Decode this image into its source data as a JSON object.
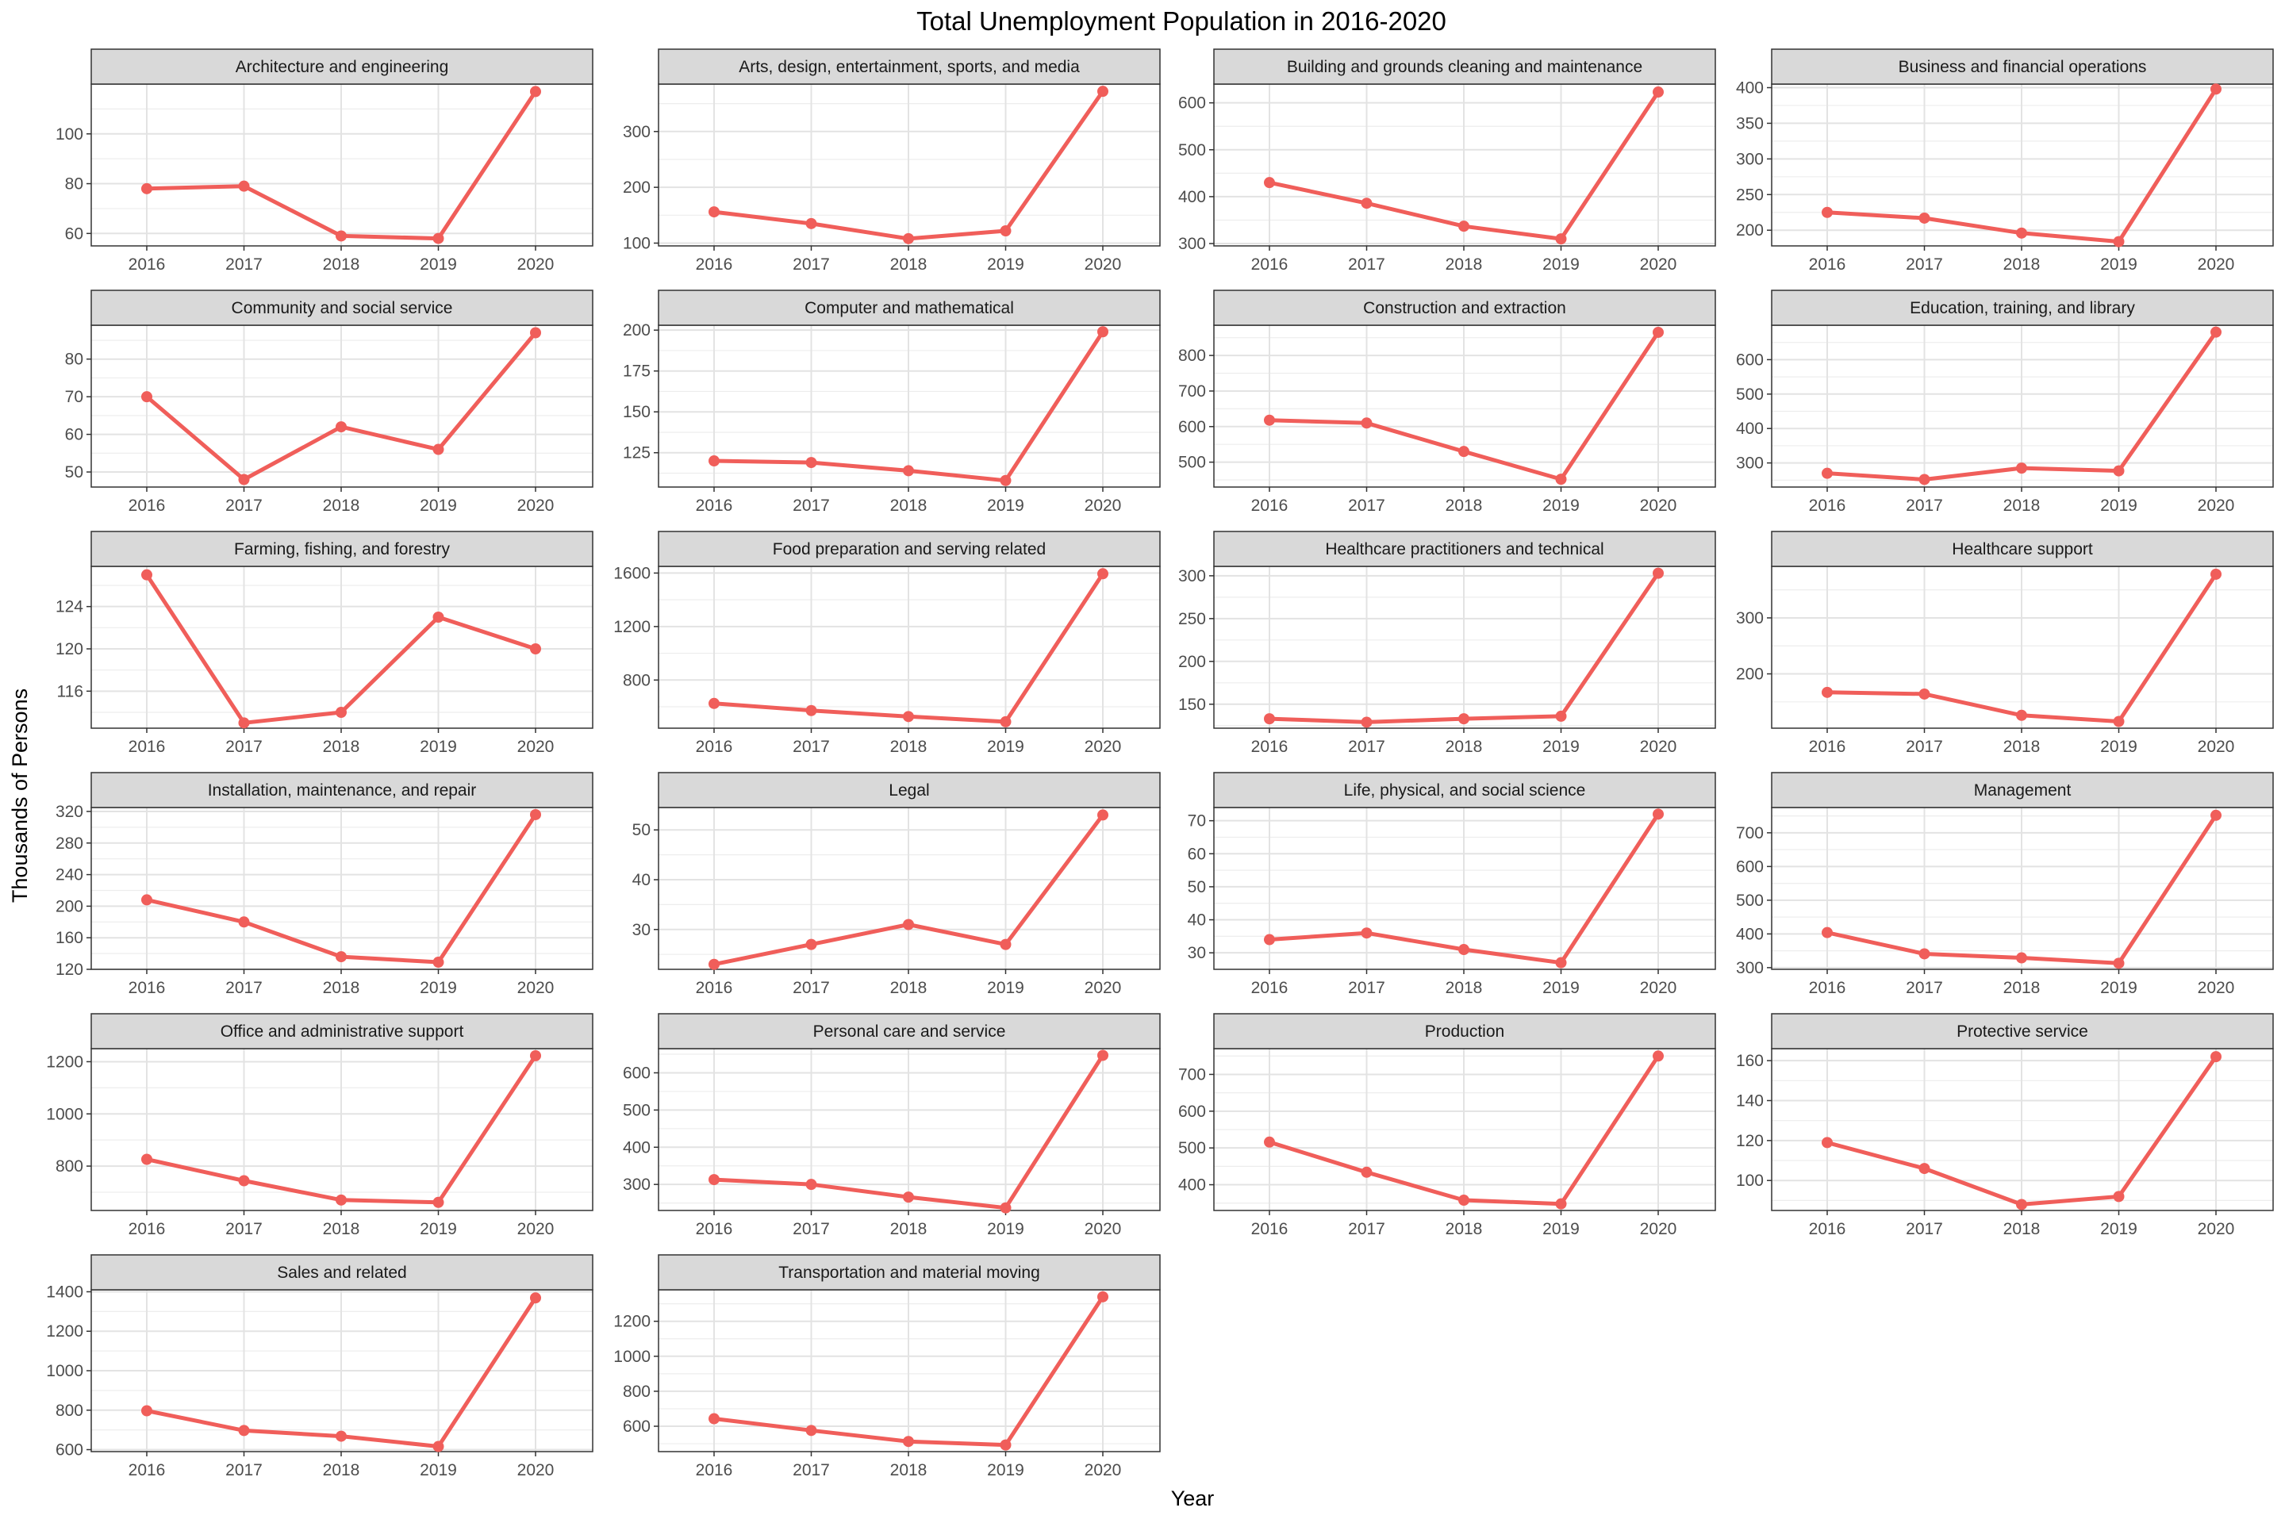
{
  "chart_data": {
    "type": "line",
    "title": "Total Unemployment Population in 2016-2020",
    "xlabel": "Year",
    "ylabel": "Thousands of Persons",
    "x": [
      "2016",
      "2017",
      "2018",
      "2019",
      "2020"
    ],
    "grid": true,
    "line_color": "#F05E5A",
    "panels": [
      {
        "name": "Architecture and engineering",
        "values": [
          78,
          79,
          59,
          58,
          117
        ],
        "yticks": [
          60,
          80,
          100
        ],
        "ylim": [
          55,
          120
        ]
      },
      {
        "name": "Arts, design, entertainment, sports, and media",
        "values": [
          156,
          135,
          108,
          122,
          372
        ],
        "yticks": [
          100,
          200,
          300
        ],
        "ylim": [
          95,
          385
        ]
      },
      {
        "name": "Building and grounds cleaning and maintenance",
        "values": [
          430,
          386,
          337,
          310,
          623
        ],
        "yticks": [
          300,
          400,
          500,
          600
        ],
        "ylim": [
          295,
          640
        ]
      },
      {
        "name": "Business and financial operations",
        "values": [
          225,
          217,
          196,
          184,
          398
        ],
        "yticks": [
          200,
          250,
          300,
          350,
          400
        ],
        "ylim": [
          178,
          405
        ]
      },
      {
        "name": "Community and social service",
        "values": [
          70,
          48,
          62,
          56,
          87
        ],
        "yticks": [
          50,
          60,
          70,
          80
        ],
        "ylim": [
          46,
          89
        ]
      },
      {
        "name": "Computer and mathematical",
        "values": [
          120,
          119,
          114,
          108,
          199
        ],
        "yticks": [
          125,
          150,
          175,
          200
        ],
        "ylim": [
          104,
          203
        ]
      },
      {
        "name": "Construction and extraction",
        "values": [
          618,
          610,
          530,
          452,
          865
        ],
        "yticks": [
          500,
          600,
          700,
          800
        ],
        "ylim": [
          430,
          885
        ]
      },
      {
        "name": "Education, training, and library",
        "values": [
          270,
          252,
          285,
          277,
          680
        ],
        "yticks": [
          300,
          400,
          500,
          600
        ],
        "ylim": [
          230,
          700
        ]
      },
      {
        "name": "Farming, fishing, and forestry",
        "values": [
          127,
          113,
          114,
          123,
          120
        ],
        "yticks": [
          116,
          120,
          124
        ],
        "ylim": [
          112.5,
          127.8
        ]
      },
      {
        "name": "Food preparation and serving related",
        "values": [
          625,
          572,
          527,
          488,
          1595
        ],
        "yticks": [
          800,
          1200,
          1600
        ],
        "ylim": [
          440,
          1650
        ]
      },
      {
        "name": "Healthcare practitioners and technical",
        "values": [
          133,
          129,
          133,
          136,
          303
        ],
        "yticks": [
          150,
          200,
          250,
          300
        ],
        "ylim": [
          122,
          311
        ]
      },
      {
        "name": "Healthcare support",
        "values": [
          167,
          164,
          126,
          115,
          378
        ],
        "yticks": [
          200,
          300
        ],
        "ylim": [
          103,
          392
        ]
      },
      {
        "name": "Installation, maintenance, and repair",
        "values": [
          208,
          180,
          136,
          129,
          316
        ],
        "yticks": [
          120,
          160,
          200,
          240,
          280,
          320
        ],
        "ylim": [
          120,
          325
        ]
      },
      {
        "name": "Legal",
        "values": [
          23,
          27,
          31,
          27,
          53
        ],
        "yticks": [
          30,
          40,
          50
        ],
        "ylim": [
          22,
          54.5
        ]
      },
      {
        "name": "Life, physical, and social science",
        "values": [
          34,
          36,
          31,
          27,
          72
        ],
        "yticks": [
          30,
          40,
          50,
          60,
          70
        ],
        "ylim": [
          25,
          74
        ]
      },
      {
        "name": "Management",
        "values": [
          404,
          341,
          329,
          313,
          752
        ],
        "yticks": [
          300,
          400,
          500,
          600,
          700
        ],
        "ylim": [
          295,
          775
        ]
      },
      {
        "name": "Office and administrative support",
        "values": [
          826,
          744,
          670,
          661,
          1223
        ],
        "yticks": [
          800,
          1000,
          1200
        ],
        "ylim": [
          630,
          1250
        ]
      },
      {
        "name": "Personal care and service",
        "values": [
          313,
          300,
          266,
          237,
          647
        ],
        "yticks": [
          300,
          400,
          500,
          600
        ],
        "ylim": [
          230,
          665
        ]
      },
      {
        "name": "Production",
        "values": [
          516,
          434,
          358,
          348,
          750
        ],
        "yticks": [
          400,
          500,
          600,
          700
        ],
        "ylim": [
          330,
          770
        ]
      },
      {
        "name": "Protective service",
        "values": [
          119,
          106,
          88,
          92,
          162
        ],
        "yticks": [
          100,
          120,
          140,
          160
        ],
        "ylim": [
          85,
          166
        ]
      },
      {
        "name": "Sales and related",
        "values": [
          797,
          697,
          668,
          616,
          1369
        ],
        "yticks": [
          600,
          800,
          1000,
          1200,
          1400
        ],
        "ylim": [
          590,
          1410
        ]
      },
      {
        "name": "Transportation and material moving",
        "values": [
          643,
          576,
          513,
          493,
          1340
        ],
        "yticks": [
          600,
          800,
          1000,
          1200
        ],
        "ylim": [
          455,
          1380
        ]
      }
    ]
  }
}
